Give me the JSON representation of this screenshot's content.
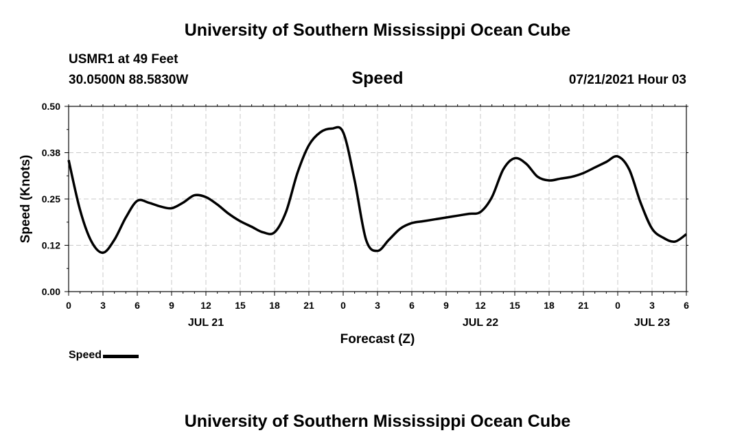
{
  "header": {
    "title": "University of Southern Mississippi Ocean Cube",
    "station": "USMR1 at 49 Feet",
    "coordinates": "30.0500N  88.5830W",
    "parameter": "Speed",
    "issued": "07/21/2021 Hour 03"
  },
  "legend": {
    "label": "Speed"
  },
  "footer": {
    "title": "University of Southern Mississippi Ocean Cube"
  },
  "chart_data": {
    "type": "line",
    "xlabel": "Forecast (Z)",
    "ylabel": "Speed (Knots)",
    "xlim": [
      0,
      54
    ],
    "ylim": [
      0,
      0.5
    ],
    "yticks": [
      "0.00",
      "0.12",
      "0.25",
      "0.38",
      "0.50"
    ],
    "xticks": [
      "0",
      "3",
      "6",
      "9",
      "12",
      "15",
      "18",
      "21",
      "0",
      "3",
      "6",
      "9",
      "12",
      "15",
      "18",
      "21",
      "0",
      "3",
      "6"
    ],
    "date_labels": [
      {
        "hour": 12,
        "label": "JUL 21"
      },
      {
        "hour": 36,
        "label": "JUL 22"
      },
      {
        "hour": 51,
        "label": "JUL 23"
      }
    ],
    "grid": true,
    "series": [
      {
        "name": "Speed",
        "color": "#000000",
        "x": [
          0,
          1,
          2,
          3,
          4,
          5,
          6,
          7,
          8,
          9,
          10,
          11,
          12,
          13,
          14,
          15,
          16,
          17,
          18,
          19,
          20,
          21,
          22,
          23,
          24,
          25,
          26,
          27,
          28,
          29,
          30,
          31,
          32,
          33,
          34,
          35,
          36,
          37,
          38,
          39,
          40,
          41,
          42,
          43,
          44,
          45,
          46,
          47,
          48,
          49,
          50,
          51,
          52,
          53,
          54
        ],
        "y": [
          0.355,
          0.22,
          0.135,
          0.105,
          0.14,
          0.2,
          0.245,
          0.24,
          0.23,
          0.225,
          0.24,
          0.26,
          0.255,
          0.235,
          0.21,
          0.19,
          0.175,
          0.16,
          0.16,
          0.215,
          0.32,
          0.395,
          0.43,
          0.44,
          0.43,
          0.3,
          0.14,
          0.11,
          0.14,
          0.17,
          0.185,
          0.19,
          0.195,
          0.2,
          0.205,
          0.21,
          0.215,
          0.255,
          0.33,
          0.36,
          0.345,
          0.31,
          0.3,
          0.305,
          0.31,
          0.32,
          0.335,
          0.35,
          0.365,
          0.33,
          0.24,
          0.17,
          0.145,
          0.135,
          0.155
        ]
      }
    ]
  }
}
